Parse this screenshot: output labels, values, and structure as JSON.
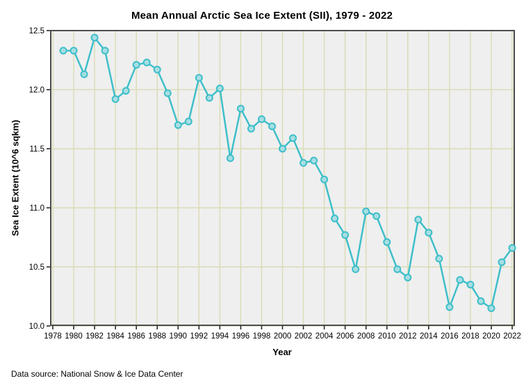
{
  "footer": "Data source: National Snow & Ice Data Center",
  "chart_data": {
    "type": "line",
    "title": "Mean Annual Arctic Sea Ice Extent (SII), 1979 - 2022",
    "xlabel": "Year",
    "ylabel": "Sea Ice Extent (10^6 sqkm)",
    "xlim": [
      1978,
      2022
    ],
    "ylim": [
      10.0,
      12.5
    ],
    "x_ticks": [
      1978,
      1980,
      1982,
      1984,
      1986,
      1988,
      1990,
      1992,
      1994,
      1996,
      1998,
      2000,
      2002,
      2004,
      2006,
      2008,
      2010,
      2012,
      2014,
      2016,
      2018,
      2020,
      2022
    ],
    "y_ticks": [
      10.0,
      10.5,
      11.0,
      11.5,
      12.0,
      12.5
    ],
    "grid": true,
    "legend": "none",
    "x": [
      1979,
      1980,
      1981,
      1982,
      1983,
      1984,
      1985,
      1986,
      1987,
      1988,
      1989,
      1990,
      1991,
      1992,
      1993,
      1994,
      1995,
      1996,
      1997,
      1998,
      1999,
      2000,
      2001,
      2002,
      2003,
      2004,
      2005,
      2006,
      2007,
      2008,
      2009,
      2010,
      2011,
      2012,
      2013,
      2014,
      2015,
      2016,
      2017,
      2018,
      2019,
      2020,
      2021,
      2022
    ],
    "values": [
      12.33,
      12.33,
      12.13,
      12.44,
      12.33,
      11.92,
      11.99,
      12.21,
      12.23,
      12.17,
      11.97,
      11.7,
      11.73,
      12.1,
      11.93,
      12.01,
      11.42,
      11.84,
      11.67,
      11.75,
      11.69,
      11.5,
      11.59,
      11.38,
      11.4,
      11.24,
      10.91,
      10.77,
      10.48,
      10.97,
      10.93,
      10.71,
      10.48,
      10.41,
      10.9,
      10.79,
      10.57,
      10.16,
      10.39,
      10.35,
      10.21,
      10.15,
      10.54,
      10.66
    ],
    "colors": {
      "line": "#3EBFC9",
      "marker_fill": "#A8DEE3",
      "plot_bg": "#EFEFEF",
      "grid": "#DCDCB8",
      "frame": "#4D4D4D",
      "tick": "#1A1A1A"
    }
  }
}
